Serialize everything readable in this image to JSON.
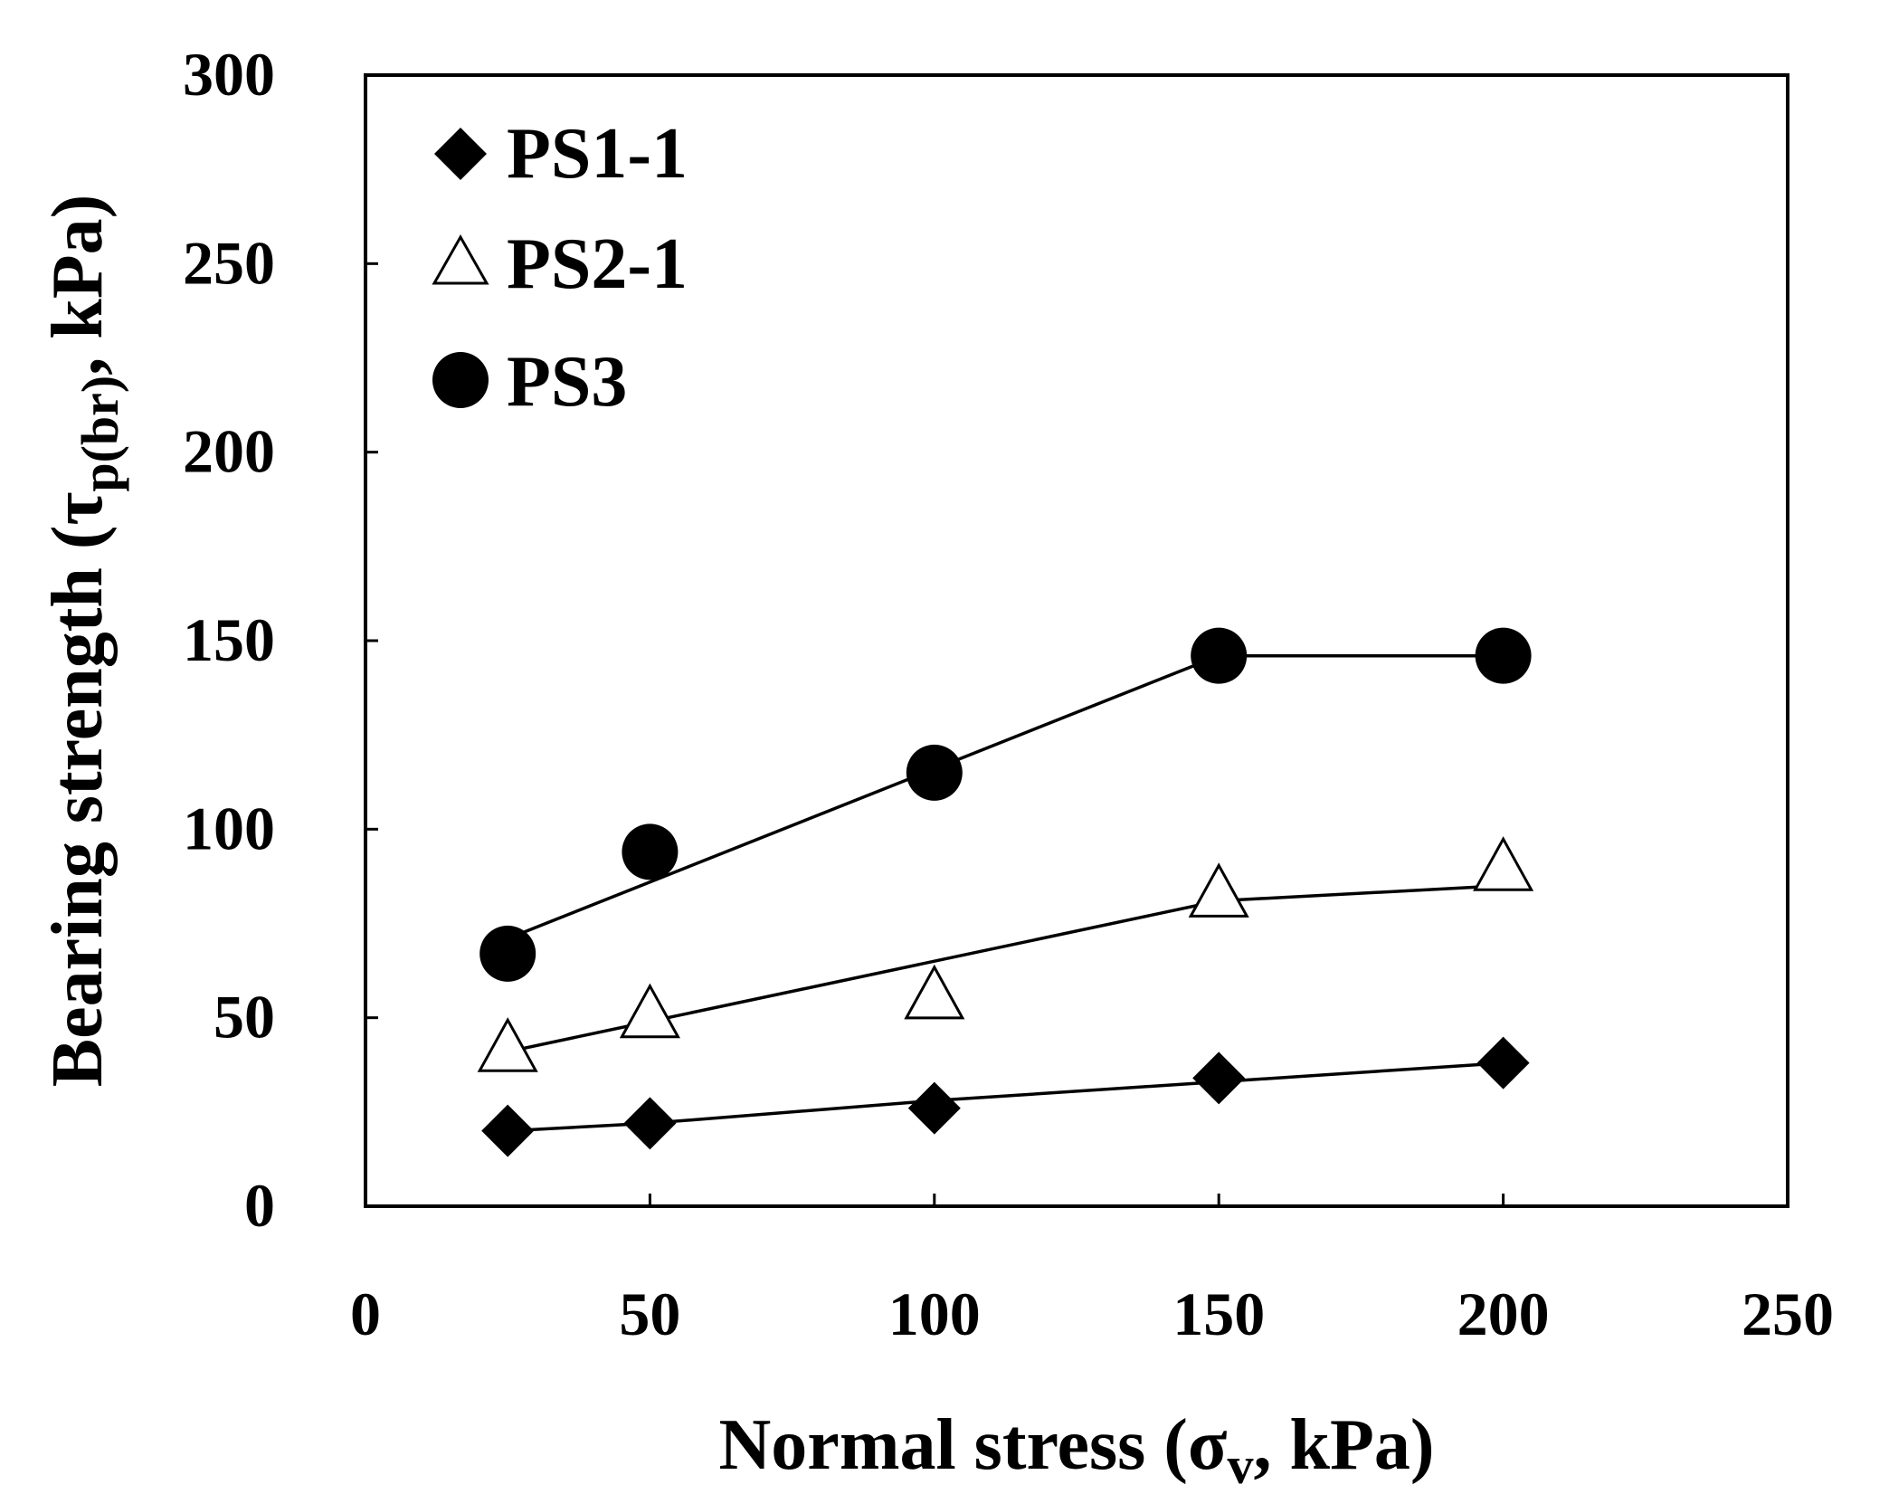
{
  "chart_data": {
    "type": "scatter",
    "title": "",
    "xlabel": "Normal stress (σ",
    "xlabel_sub": "v",
    "xlabel_tail": ", kPa)",
    "ylabel": "Bearing strength (τ",
    "ylabel_sub": "p(br)",
    "ylabel_tail": ", kPa)",
    "xlim": [
      0,
      250
    ],
    "ylim": [
      0,
      300
    ],
    "xticks": [
      0,
      50,
      100,
      150,
      200,
      250
    ],
    "yticks": [
      0,
      50,
      100,
      150,
      200,
      250,
      300
    ],
    "legend_position": "top-left",
    "grid": false,
    "series": [
      {
        "name": "PS1-1",
        "marker": "diamond",
        "marker_fill": "#000000",
        "x": [
          25,
          50,
          100,
          150,
          200
        ],
        "y": [
          20,
          22,
          26,
          34,
          38
        ],
        "trend": [
          [
            25,
            20
          ],
          [
            50,
            22
          ],
          [
            100,
            28
          ],
          [
            150,
            33
          ],
          [
            200,
            38
          ]
        ]
      },
      {
        "name": "PS2-1",
        "marker": "triangle-open",
        "marker_fill": "#ffffff",
        "x": [
          25,
          50,
          100,
          150,
          200
        ],
        "y": [
          42,
          51,
          56,
          83,
          90
        ],
        "trend": [
          [
            25,
            41
          ],
          [
            50,
            49
          ],
          [
            100,
            65
          ],
          [
            150,
            81
          ],
          [
            200,
            85
          ]
        ]
      },
      {
        "name": "PS3",
        "marker": "circle",
        "marker_fill": "#000000",
        "x": [
          25,
          50,
          100,
          150,
          200
        ],
        "y": [
          67,
          94,
          115,
          146,
          146
        ],
        "trend": [
          [
            25,
            71
          ],
          [
            50,
            86
          ],
          [
            100,
            116
          ],
          [
            150,
            146
          ],
          [
            200,
            146
          ]
        ]
      }
    ]
  }
}
